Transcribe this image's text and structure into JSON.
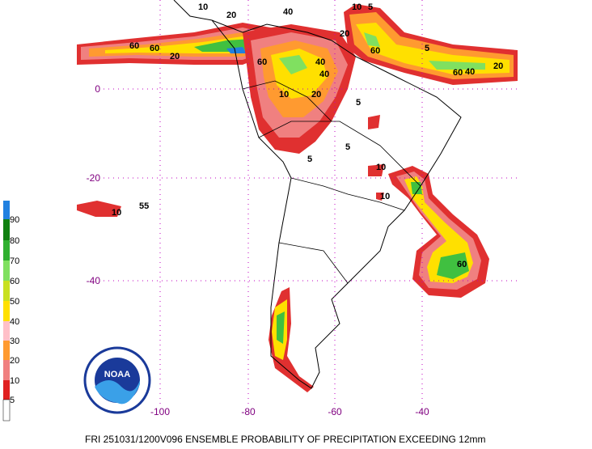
{
  "title": "FRI 251031/1200V096  ENSEMBLE PROBABILITY OF PRECIPITATION EXCEEDING 12mm",
  "latitude_labels": [
    "0",
    "-20",
    "-40"
  ],
  "longitude_labels": [
    "-100",
    "-80",
    "-60",
    "-40"
  ],
  "colorbar": {
    "labels": [
      "90",
      "80",
      "70",
      "60",
      "50",
      "40",
      "30",
      "20",
      "10",
      "5"
    ]
  },
  "logo": {
    "text": "NOAA"
  },
  "contour_labels": [
    "10",
    "20",
    "60",
    "60",
    "20",
    "40",
    "40",
    "20",
    "10",
    "5",
    "5",
    "10",
    "20",
    "60",
    "60",
    "60",
    "40",
    "20",
    "40",
    "60",
    "5",
    "10",
    "55",
    "10",
    "5",
    "5",
    "10"
  ]
}
